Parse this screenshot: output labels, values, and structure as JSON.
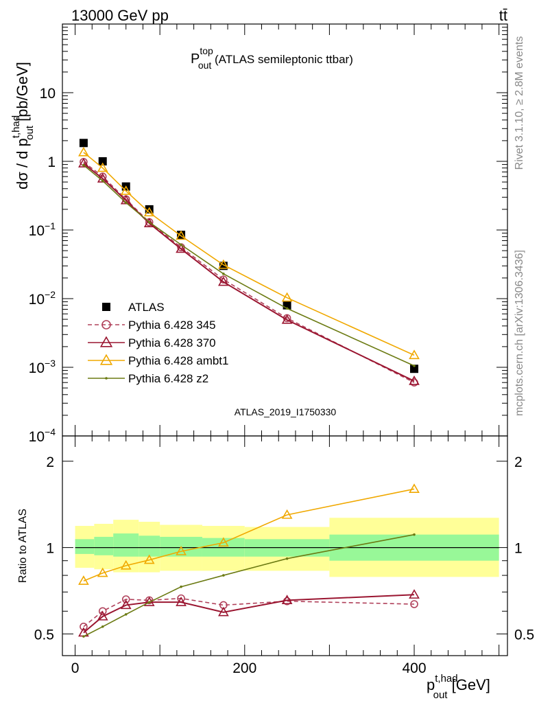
{
  "header": {
    "energy": "13000 GeV pp",
    "process": "tt̄"
  },
  "side_labels": {
    "rivet": "Rivet 3.1.10, ≥ 2.8M events",
    "source": "mcplots.cern.ch [arXiv:1306.3436]"
  },
  "watermark": "ATLAS_2019_I1750330",
  "colors": {
    "data": "#000000",
    "p345": "#b0405a",
    "p370": "#9a1530",
    "ambt1": "#f0a800",
    "z2": "#6b7a12",
    "band_inner": "#98f898",
    "band_outer": "#ffff98"
  },
  "chart_data": [
    {
      "type": "line",
      "title": "P_out^top (ATLAS semileptonic ttbar)",
      "title_parts": {
        "main": "P",
        "sup": "top",
        "sub": "out",
        "rest": " (ATLAS semileptonic ttbar)"
      },
      "ylabel": "dσ / d p_out^t,had [pb/GeV]",
      "ylabel_parts": {
        "a": "dσ / d p",
        "sup": "t,had",
        "sub": "out",
        "b": " [pb/GeV]"
      },
      "yscale": "log",
      "ylim": [
        0.0001,
        100
      ],
      "xlim": [
        -15,
        510
      ],
      "yticks": [
        {
          "v": 0.0001,
          "m": "10",
          "e": "−4"
        },
        {
          "v": 0.001,
          "m": "10",
          "e": "−3"
        },
        {
          "v": 0.01,
          "m": "10",
          "e": "−2"
        },
        {
          "v": 0.1,
          "m": "10",
          "e": "−1"
        },
        {
          "v": 1,
          "m": "1",
          "e": ""
        },
        {
          "v": 10,
          "m": "10",
          "e": ""
        }
      ],
      "legend_position": "lower-left",
      "series": [
        {
          "name": "ATLAS",
          "marker": "square",
          "x": [
            10,
            32.5,
            60,
            87.5,
            125,
            175,
            250,
            400
          ],
          "y": [
            1.85,
            1.0,
            0.43,
            0.2,
            0.085,
            0.03,
            0.008,
            0.00095
          ]
        },
        {
          "name": "Pythia 6.428 345",
          "marker": "circle",
          "dashed": true,
          "x": [
            10,
            32.5,
            60,
            87.5,
            125,
            175,
            250,
            400
          ],
          "y": [
            0.98,
            0.6,
            0.28,
            0.13,
            0.056,
            0.019,
            0.0052,
            0.0006
          ]
        },
        {
          "name": "Pythia 6.428 370",
          "marker": "triangle",
          "x": [
            10,
            32.5,
            60,
            87.5,
            125,
            175,
            250,
            400
          ],
          "y": [
            0.93,
            0.56,
            0.27,
            0.125,
            0.053,
            0.0175,
            0.0049,
            0.00063
          ]
        },
        {
          "name": "Pythia 6.428 ambt1",
          "marker": "triangle",
          "x": [
            10,
            32.5,
            60,
            87.5,
            125,
            175,
            250,
            400
          ],
          "y": [
            1.35,
            0.8,
            0.37,
            0.18,
            0.082,
            0.031,
            0.0103,
            0.0015
          ]
        },
        {
          "name": "Pythia 6.428 z2",
          "marker": "dot",
          "x": [
            10,
            32.5,
            60,
            87.5,
            125,
            175,
            250,
            400
          ],
          "y": [
            0.88,
            0.52,
            0.25,
            0.13,
            0.061,
            0.023,
            0.0072,
            0.00105
          ]
        }
      ]
    },
    {
      "type": "line",
      "ylabel": "Ratio to ATLAS",
      "xlabel": "p_out^t,had [GeV]",
      "xlabel_parts": {
        "a": "p",
        "sup": "t,had",
        "sub": "out",
        "b": " [GeV]"
      },
      "yscale": "log",
      "ylim": [
        0.42,
        2.45
      ],
      "xlim": [
        -15,
        510
      ],
      "yticks": [
        0.5,
        1,
        2
      ],
      "xticks": [
        0,
        200,
        400
      ],
      "bands": {
        "edges": [
          0,
          22.5,
          45,
          75,
          100,
          150,
          200,
          300,
          500
        ],
        "inner_lo": [
          0.95,
          0.94,
          0.93,
          0.93,
          0.93,
          0.93,
          0.93,
          0.9
        ],
        "inner_hi": [
          1.07,
          1.09,
          1.12,
          1.1,
          1.09,
          1.08,
          1.07,
          1.11
        ],
        "outer_lo": [
          0.85,
          0.84,
          0.82,
          0.82,
          0.83,
          0.83,
          0.83,
          0.79
        ],
        "outer_hi": [
          1.19,
          1.21,
          1.25,
          1.23,
          1.2,
          1.19,
          1.18,
          1.27
        ]
      },
      "series": [
        {
          "name": "Pythia 6.428 345",
          "marker": "circle",
          "dashed": true,
          "x": [
            10,
            32.5,
            60,
            87.5,
            125,
            175,
            250,
            400
          ],
          "y": [
            0.53,
            0.6,
            0.66,
            0.655,
            0.665,
            0.63,
            0.65,
            0.635
          ]
        },
        {
          "name": "Pythia 6.428 370",
          "marker": "triangle",
          "x": [
            10,
            32.5,
            60,
            87.5,
            125,
            175,
            250,
            400
          ],
          "y": [
            0.505,
            0.575,
            0.63,
            0.645,
            0.645,
            0.595,
            0.655,
            0.685
          ]
        },
        {
          "name": "Pythia 6.428 ambt1",
          "marker": "triangle",
          "x": [
            10,
            32.5,
            60,
            87.5,
            125,
            175,
            250,
            400
          ],
          "y": [
            0.765,
            0.815,
            0.865,
            0.905,
            0.97,
            1.04,
            1.3,
            1.6
          ]
        },
        {
          "name": "Pythia 6.428 z2",
          "marker": "dot",
          "x": [
            10,
            32.5,
            60,
            87.5,
            125,
            175,
            250,
            400
          ],
          "y": [
            0.49,
            0.53,
            0.585,
            0.645,
            0.73,
            0.8,
            0.915,
            1.11
          ]
        }
      ]
    }
  ]
}
